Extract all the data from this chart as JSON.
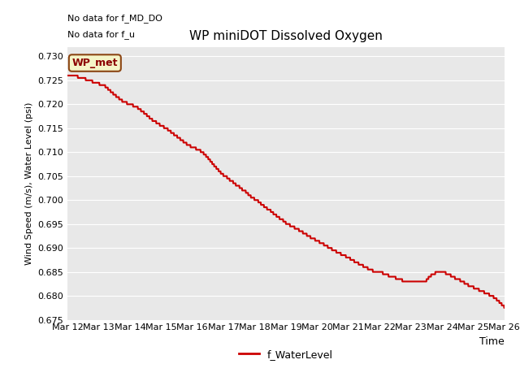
{
  "title": "WP miniDOT Dissolved Oxygen",
  "ylabel": "Wind Speed (m/s), Water Level (psi)",
  "xlabel": "Time",
  "top_left_text_line1": "No data for f_MD_DO",
  "top_left_text_line2": "No data for f_u",
  "legend_label": "f_WaterLevel",
  "wp_met_label": "WP_met",
  "ylim": [
    0.675,
    0.732
  ],
  "yticks": [
    0.675,
    0.68,
    0.685,
    0.69,
    0.695,
    0.7,
    0.705,
    0.71,
    0.715,
    0.72,
    0.725,
    0.73
  ],
  "x_tick_labels": [
    "Mar 12",
    "Mar 13",
    "Mar 14",
    "Mar 15",
    "Mar 16",
    "Mar 17",
    "Mar 18",
    "Mar 19",
    "Mar 20",
    "Mar 21",
    "Mar 22",
    "Mar 23",
    "Mar 24",
    "Mar 25",
    "Mar 26"
  ],
  "line_color": "#cc0000",
  "line_width": 1.5,
  "bg_color": "#e8e8e8",
  "grid_color": "#ffffff",
  "fig_bg_color": "#ffffff",
  "key_x": [
    0,
    0.3,
    0.6,
    0.9,
    1.0,
    1.2,
    1.5,
    1.8,
    2.0,
    2.2,
    2.5,
    2.7,
    2.9,
    3.0,
    3.1,
    3.2,
    3.4,
    3.6,
    3.8,
    4.0,
    4.1,
    4.2,
    4.3,
    4.4,
    4.5,
    4.6,
    4.7,
    4.8,
    4.9,
    5.0,
    5.1,
    5.2,
    5.3,
    5.4,
    5.5,
    5.6,
    5.7,
    5.8,
    5.9,
    6.0,
    6.1,
    6.2,
    6.3,
    6.4,
    6.5,
    6.6,
    6.7,
    6.8,
    6.9,
    7.0,
    7.2,
    7.4,
    7.6,
    7.8,
    8.0,
    8.2,
    8.4,
    8.6,
    8.8,
    9.0,
    9.2,
    9.4,
    9.6,
    9.8,
    10.0,
    10.2,
    10.3,
    10.4,
    10.5,
    10.6,
    10.7,
    10.8,
    10.9,
    11.0,
    11.2,
    11.4,
    11.5,
    11.6,
    11.7,
    11.8,
    11.9,
    12.0,
    12.1,
    12.2,
    12.3,
    12.4,
    12.5,
    12.6,
    12.7,
    12.8,
    12.9,
    13.0,
    13.2,
    13.4,
    13.6,
    13.8,
    14.0
  ],
  "key_y": [
    0.726,
    0.7258,
    0.7252,
    0.7245,
    0.7243,
    0.7238,
    0.722,
    0.7205,
    0.72,
    0.7195,
    0.718,
    0.7168,
    0.716,
    0.7155,
    0.7152,
    0.7148,
    0.7138,
    0.7128,
    0.7118,
    0.711,
    0.7108,
    0.7105,
    0.7101,
    0.7095,
    0.7088,
    0.708,
    0.7072,
    0.7065,
    0.7058,
    0.7052,
    0.7048,
    0.7042,
    0.7038,
    0.7032,
    0.7028,
    0.7022,
    0.7018,
    0.7012,
    0.7006,
    0.7002,
    0.6998,
    0.6992,
    0.6987,
    0.6982,
    0.6978,
    0.6972,
    0.6967,
    0.6962,
    0.6958,
    0.6952,
    0.6945,
    0.6938,
    0.693,
    0.6922,
    0.6915,
    0.6908,
    0.69,
    0.6893,
    0.6886,
    0.688,
    0.6872,
    0.6865,
    0.6858,
    0.6852,
    0.685,
    0.6845,
    0.6842,
    0.684,
    0.6838,
    0.6835,
    0.6833,
    0.6831,
    0.683,
    0.6828,
    0.6828,
    0.683,
    0.6832,
    0.684,
    0.6845,
    0.6848,
    0.685,
    0.685,
    0.6848,
    0.6845,
    0.6842,
    0.6838,
    0.6835,
    0.6832,
    0.6828,
    0.6824,
    0.682,
    0.6818,
    0.6812,
    0.6806,
    0.68,
    0.679,
    0.6777
  ]
}
